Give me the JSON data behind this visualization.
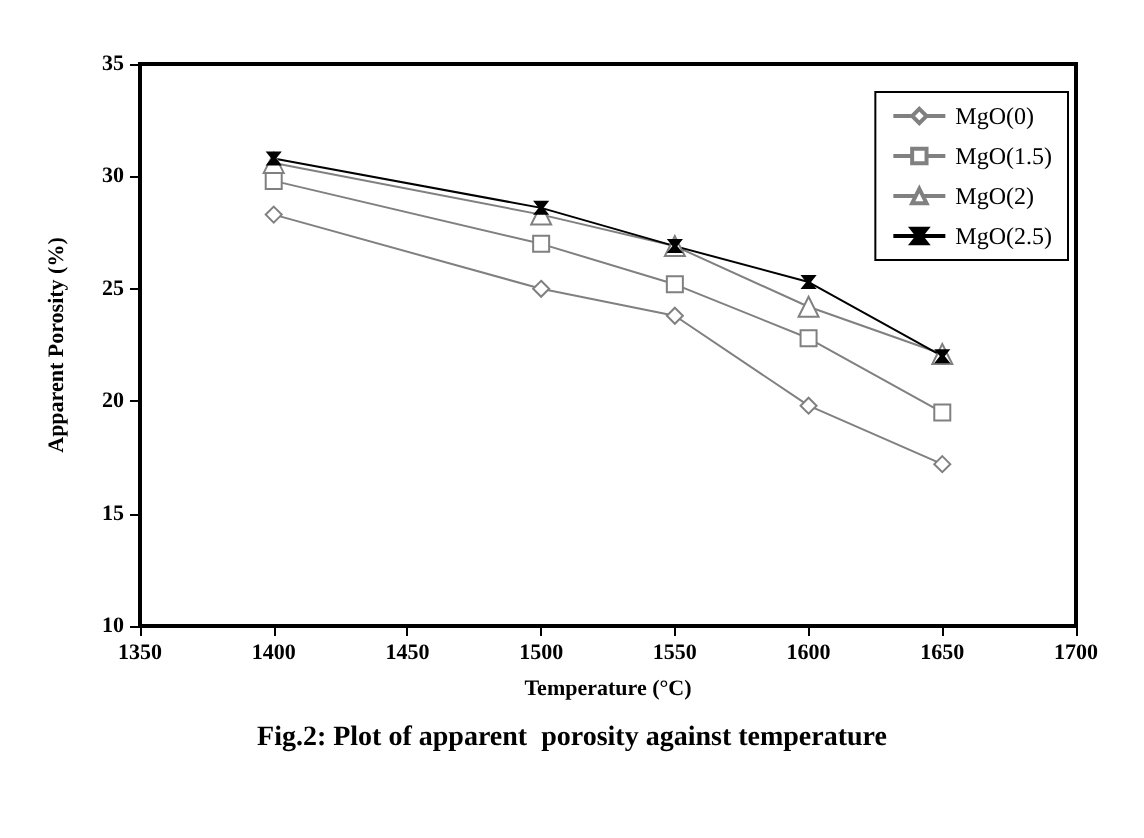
{
  "chart_data": {
    "type": "line",
    "xlabel": "Temperature (°C)",
    "ylabel": "Apparent Porosity (%)",
    "x": [
      1400,
      1500,
      1550,
      1600,
      1650
    ],
    "series": [
      {
        "name": "MgO(0)",
        "color": "#808080",
        "marker": "diamond",
        "values": [
          28.3,
          25.0,
          23.8,
          19.8,
          17.2
        ]
      },
      {
        "name": "MgO(1.5)",
        "color": "#808080",
        "marker": "square",
        "values": [
          29.8,
          27.0,
          25.2,
          22.8,
          19.5
        ]
      },
      {
        "name": "MgO(2)",
        "color": "#808080",
        "marker": "triangle",
        "values": [
          30.6,
          28.3,
          26.9,
          24.2,
          22.1
        ]
      },
      {
        "name": "MgO(2.5)",
        "color": "#000000",
        "marker": "cross",
        "values": [
          30.8,
          28.6,
          26.9,
          25.3,
          22.0
        ]
      }
    ],
    "xlim": [
      1350,
      1700
    ],
    "xticks": [
      1350,
      1400,
      1450,
      1500,
      1550,
      1600,
      1650,
      1700
    ],
    "ylim": [
      10,
      35
    ],
    "yticks": [
      10,
      15,
      20,
      25,
      30,
      35
    ],
    "grid": false,
    "legend": "top right",
    "line_style": "solid",
    "annotations": [
      "Fig.2: Plot of apparent  porosity against temperature"
    ]
  }
}
